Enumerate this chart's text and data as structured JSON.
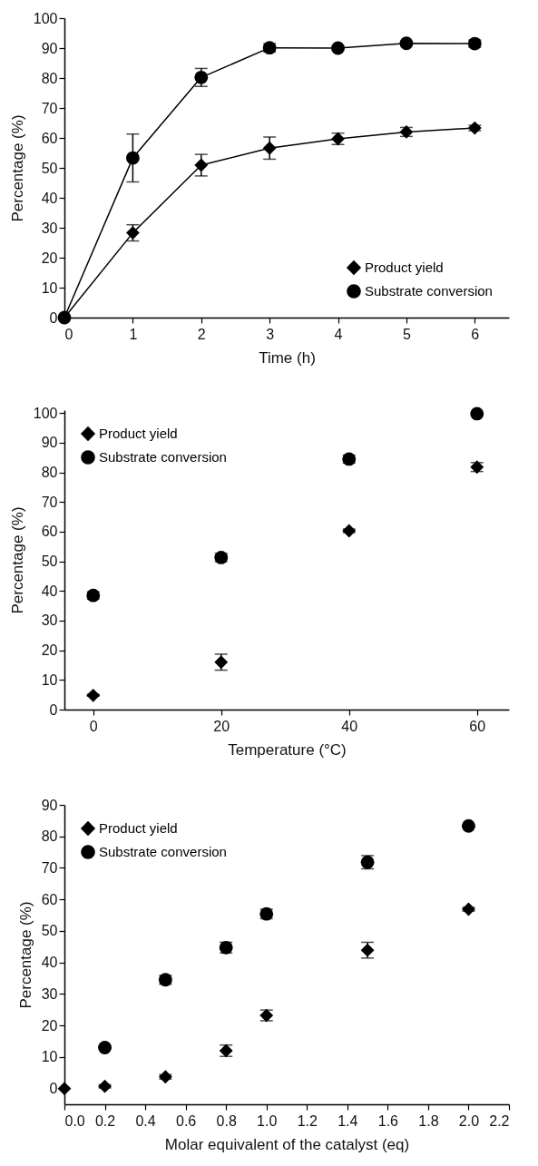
{
  "chart_data": [
    {
      "type": "line",
      "xlabel": "Time (h)",
      "ylabel": "Percentage (%)",
      "x": [
        0,
        1,
        2,
        3,
        4,
        5,
        6
      ],
      "xlim": [
        0,
        6.5
      ],
      "xticks": [
        0,
        1,
        2,
        3,
        4,
        5,
        6
      ],
      "ylim": [
        0,
        100
      ],
      "yticks": [
        0,
        10,
        20,
        30,
        40,
        50,
        60,
        70,
        80,
        90,
        100
      ],
      "legend": "bottom right",
      "series": [
        {
          "name": "Product yield",
          "color": "#000000",
          "marker": "diamond",
          "values": [
            0,
            28.3,
            50.9,
            56.6,
            59.7,
            62.0,
            63.3
          ],
          "errors": [
            null,
            2.7,
            3.6,
            3.7,
            1.9,
            1.5,
            0.9
          ]
        },
        {
          "name": "Substrate conversion",
          "color": "#000000",
          "marker": "circle",
          "values": [
            0,
            53.3,
            80.2,
            90.1,
            90.0,
            91.6,
            91.5
          ],
          "errors": [
            null,
            8.0,
            3.0,
            1.4,
            0.7,
            0.5,
            1.2
          ]
        }
      ]
    },
    {
      "type": "scatter",
      "xlabel": "Temperature (°C)",
      "ylabel": "Percentage (%)",
      "x": [
        0,
        20,
        40,
        60
      ],
      "xlim": [
        -4.5,
        65
      ],
      "xticks": [
        0,
        20,
        40,
        60
      ],
      "ylim": [
        0,
        101
      ],
      "yticks": [
        0,
        10,
        20,
        30,
        40,
        50,
        60,
        70,
        80,
        90,
        100
      ],
      "legend": "top left",
      "series": [
        {
          "name": "Product yield",
          "color": "#000000",
          "marker": "diamond",
          "values": [
            4.8,
            16.0,
            60.3,
            81.8
          ],
          "errors": [
            0.3,
            2.7,
            0.6,
            1.5
          ]
        },
        {
          "name": "Substrate conversion",
          "color": "#000000",
          "marker": "circle",
          "values": [
            38.5,
            51.3,
            84.5,
            99.8
          ],
          "errors": [
            1.2,
            1.4,
            1.3,
            0.3
          ]
        }
      ]
    },
    {
      "type": "scatter",
      "xlabel": "Molar equivalent of the catalyst (eq)",
      "ylabel": "Percentage (%)",
      "x": [
        0,
        0.2,
        0.5,
        0.8,
        1.0,
        1.5,
        2.0
      ],
      "xlim": [
        0,
        2.2
      ],
      "xticks": [
        {
          "value": 0,
          "label": "0.0"
        },
        0.2,
        0.4,
        0.6,
        0.8,
        {
          "value": 1,
          "label": "1.0"
        },
        1.2,
        1.4,
        1.6,
        1.8,
        {
          "value": 2,
          "label": "2.0"
        },
        2.2
      ],
      "ylim": [
        -5,
        90
      ],
      "yticks": [
        0,
        10,
        20,
        30,
        40,
        50,
        60,
        70,
        80,
        90
      ],
      "legend": "top left",
      "series": [
        {
          "name": "Product yield",
          "color": "#000000",
          "marker": "diamond",
          "values": [
            0,
            0.7,
            3.7,
            12.0,
            23.2,
            43.9,
            56.9
          ],
          "errors": [
            null,
            0.5,
            0.7,
            1.8,
            1.7,
            2.5,
            0.6
          ]
        },
        {
          "name": "Substrate conversion",
          "color": "#000000",
          "marker": "circle",
          "values": [
            null,
            13.0,
            34.5,
            44.7,
            55.4,
            71.8,
            83.3
          ],
          "errors": [
            null,
            0.2,
            1.4,
            1.7,
            1.5,
            2.1,
            0.3
          ]
        }
      ]
    }
  ]
}
